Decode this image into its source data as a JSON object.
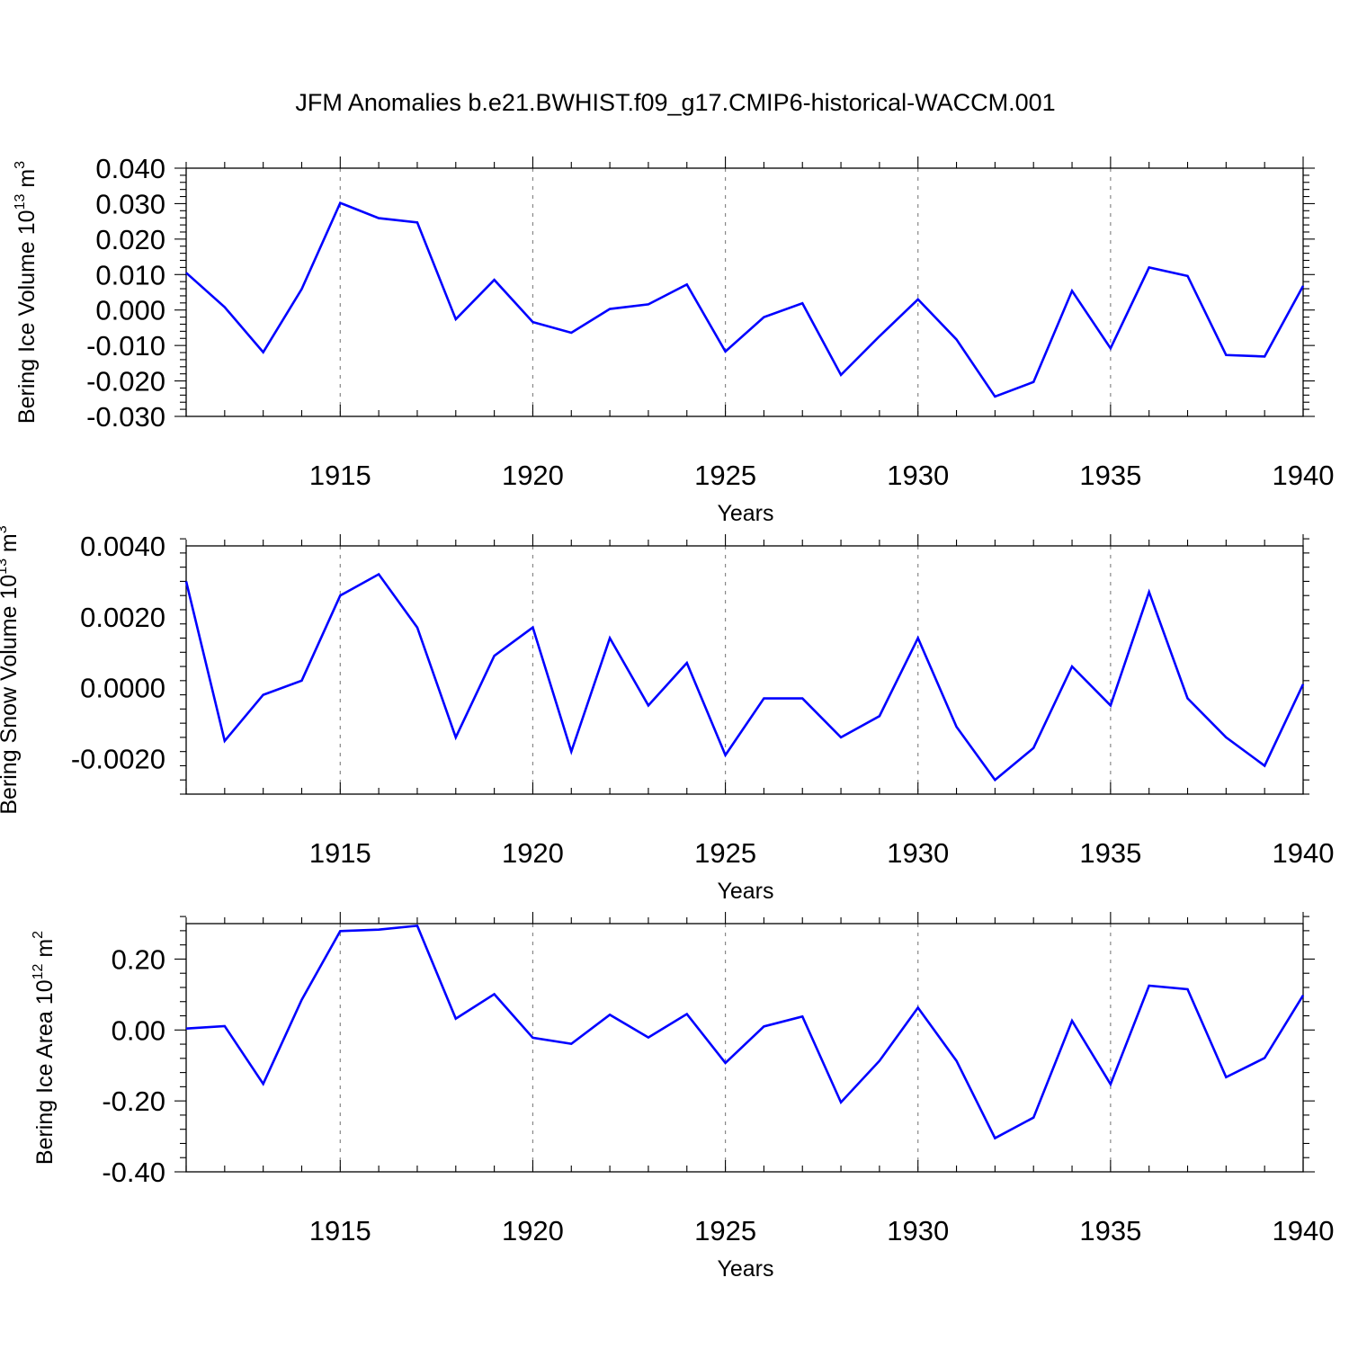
{
  "title": "JFM Anomalies b.e21.BWHIST.f09_g17.CMIP6-historical-WACCM.001",
  "colors": {
    "line": "#0000ff",
    "grid": "#888888",
    "axis": "#000000"
  },
  "chart_data": [
    {
      "type": "line",
      "title": "JFM Anomalies b.e21.BWHIST.f09_g17.CMIP6-historical-WACCM.001",
      "ylabel": {
        "text": "Bering Ice Volume 10",
        "sup": "13",
        "unit": " m",
        "unit_sup": "3"
      },
      "xlabel": "Years",
      "xlim": [
        1911,
        1940
      ],
      "ylim": [
        -0.03,
        0.04
      ],
      "yticks": [
        -0.03,
        -0.02,
        -0.01,
        0.0,
        0.01,
        0.02,
        0.03,
        0.04
      ],
      "ytick_labels": [
        "-0.030",
        "-0.020",
        "-0.010",
        "0.000",
        "0.010",
        "0.020",
        "0.030",
        "0.040"
      ],
      "yminor_step": 0.002,
      "xticks": [
        1915,
        1920,
        1925,
        1930,
        1935,
        1940
      ],
      "xtick_labels": [
        "1915",
        "1920",
        "1925",
        "1930",
        "1935",
        "1940"
      ],
      "grid": "vertical dashed at major x ticks",
      "x": [
        1911,
        1912,
        1913,
        1914,
        1915,
        1916,
        1917,
        1918,
        1919,
        1920,
        1921,
        1922,
        1923,
        1924,
        1925,
        1926,
        1927,
        1928,
        1929,
        1930,
        1931,
        1932,
        1933,
        1934,
        1935,
        1936,
        1937,
        1938,
        1939,
        1940
      ],
      "series": [
        {
          "name": "Bering Ice Volume",
          "values": [
            0.0105,
            0.0008,
            -0.0119,
            0.0059,
            0.0302,
            0.0259,
            0.0247,
            -0.0026,
            0.0085,
            -0.0034,
            -0.0064,
            0.0003,
            0.0016,
            0.0072,
            -0.0117,
            -0.002,
            0.0019,
            -0.0183,
            -0.0074,
            0.003,
            -0.0083,
            -0.0244,
            -0.0203,
            0.0054,
            -0.0108,
            0.012,
            0.0096,
            -0.0127,
            -0.0131,
            0.0068
          ]
        }
      ]
    },
    {
      "type": "line",
      "ylabel": {
        "text": "Bering Snow Volume 10",
        "sup": "13",
        "unit": " m",
        "unit_sup": "3"
      },
      "xlabel": "Years",
      "xlim": [
        1911,
        1940
      ],
      "ylim": [
        -0.003,
        0.004
      ],
      "yticks": [
        -0.002,
        0.0,
        0.002,
        0.004
      ],
      "ytick_labels": [
        "-0.0020",
        "0.0000",
        "0.0020",
        "0.0040"
      ],
      "yminor_step": 0.0004,
      "xticks": [
        1915,
        1920,
        1925,
        1930,
        1935,
        1940
      ],
      "xtick_labels": [
        "1915",
        "1920",
        "1925",
        "1930",
        "1935",
        "1940"
      ],
      "grid": "vertical dashed at major x ticks",
      "x": [
        1911,
        1912,
        1913,
        1914,
        1915,
        1916,
        1917,
        1918,
        1919,
        1920,
        1921,
        1922,
        1923,
        1924,
        1925,
        1926,
        1927,
        1928,
        1929,
        1930,
        1931,
        1932,
        1933,
        1934,
        1935,
        1936,
        1937,
        1938,
        1939,
        1940
      ],
      "series": [
        {
          "name": "Bering Snow Volume",
          "values": [
            0.003,
            -0.0015,
            -0.0002,
            0.0002,
            0.0026,
            0.0032,
            0.0017,
            -0.0014,
            0.0009,
            0.0017,
            -0.0018,
            0.0014,
            -0.0005,
            0.0007,
            -0.0019,
            -0.0003,
            -0.0003,
            -0.0014,
            -0.0008,
            0.0014,
            -0.0011,
            -0.0026,
            -0.0017,
            0.0006,
            -0.0005,
            0.0027,
            -0.0003,
            -0.0014,
            -0.0022,
            0.0001
          ]
        }
      ]
    },
    {
      "type": "line",
      "ylabel": {
        "text": "Bering Ice Area 10",
        "sup": "12",
        "unit": " m",
        "unit_sup": "2"
      },
      "xlabel": "Years",
      "xlim": [
        1911,
        1940
      ],
      "ylim": [
        -0.4,
        0.3
      ],
      "yticks": [
        -0.4,
        -0.2,
        0.0,
        0.2
      ],
      "ytick_labels": [
        "-0.40",
        "-0.20",
        "0.00",
        "0.20"
      ],
      "yminor_step": 0.04,
      "xticks": [
        1915,
        1920,
        1925,
        1930,
        1935,
        1940
      ],
      "xtick_labels": [
        "1915",
        "1920",
        "1925",
        "1930",
        "1935",
        "1940"
      ],
      "grid": "vertical dashed at major x ticks",
      "x": [
        1911,
        1912,
        1913,
        1914,
        1915,
        1916,
        1917,
        1918,
        1919,
        1920,
        1921,
        1922,
        1923,
        1924,
        1925,
        1926,
        1927,
        1928,
        1929,
        1930,
        1931,
        1932,
        1933,
        1934,
        1935,
        1936,
        1937,
        1938,
        1939,
        1940
      ],
      "series": [
        {
          "name": "Bering Ice Area",
          "values": [
            0.004,
            0.011,
            -0.152,
            0.085,
            0.279,
            0.283,
            0.294,
            0.032,
            0.101,
            -0.022,
            -0.039,
            0.043,
            -0.021,
            0.045,
            -0.093,
            0.01,
            0.038,
            -0.204,
            -0.087,
            0.063,
            -0.087,
            -0.305,
            -0.247,
            0.026,
            -0.153,
            0.125,
            0.115,
            -0.133,
            -0.079,
            0.098
          ]
        }
      ]
    }
  ]
}
